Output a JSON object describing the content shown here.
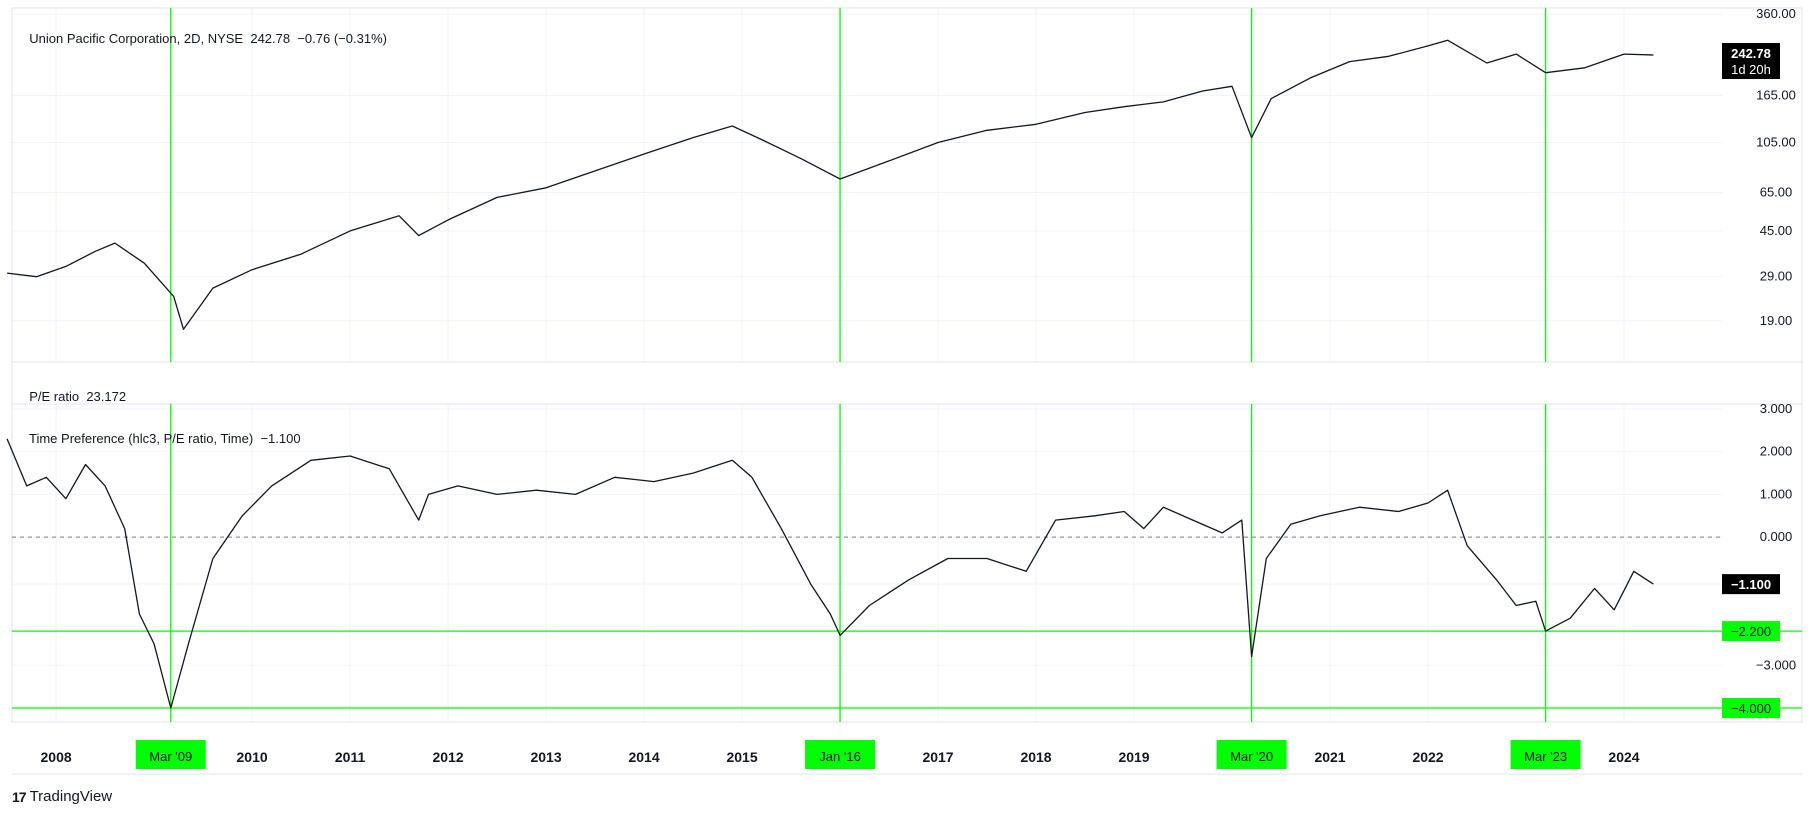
{
  "price_legend": {
    "symbol": "Union Pacific Corporation, 2D, NYSE",
    "last": "242.78",
    "change": "−0.76 (−0.31%)"
  },
  "pe_legend": {
    "label": "P/E ratio",
    "value": "23.172"
  },
  "tp_legend": {
    "label": "Time Preference (hlc3, P/E ratio, Time)",
    "value": "−1.100"
  },
  "price_badge": {
    "value": "242.78",
    "countdown": "1d 20h"
  },
  "tp_badge": {
    "value": "−1.100"
  },
  "brand": "TradingView",
  "colors": {
    "line": "#131722",
    "highlight": "#00ff00",
    "grid": "#f0f3fa",
    "badge_bg": "#000000",
    "zero_line": "#787b86"
  },
  "chart_data": [
    {
      "type": "line",
      "title": "Union Pacific Corporation, 2D, NYSE",
      "yscale": "log",
      "ylim": [
        15,
        360
      ],
      "yticks": [
        "360.00",
        "165.00",
        "105.00",
        "65.00",
        "45.00",
        "29.00",
        "19.00"
      ],
      "x": [
        2007.5,
        2007.8,
        2008.1,
        2008.4,
        2008.6,
        2008.9,
        2009.2,
        2009.3,
        2009.6,
        2010.0,
        2010.5,
        2011.0,
        2011.5,
        2011.7,
        2012.0,
        2012.5,
        2013.0,
        2013.5,
        2014.0,
        2014.5,
        2014.9,
        2015.2,
        2015.6,
        2016.0,
        2016.5,
        2017.0,
        2017.5,
        2018.0,
        2018.5,
        2018.9,
        2019.3,
        2019.7,
        2020.0,
        2020.2,
        2020.4,
        2020.8,
        2021.2,
        2021.6,
        2022.0,
        2022.2,
        2022.6,
        2022.9,
        2023.2,
        2023.6,
        2024.0,
        2024.3
      ],
      "y": [
        30,
        29,
        32,
        37,
        40,
        33,
        24,
        17.5,
        26,
        31,
        36,
        45,
        52,
        43,
        50,
        62,
        68,
        80,
        94,
        110,
        123,
        108,
        90,
        74,
        88,
        105,
        118,
        125,
        140,
        148,
        155,
        172,
        180,
        110,
        160,
        195,
        228,
        240,
        265,
        280,
        225,
        245,
        205,
        215,
        245,
        243
      ]
    },
    {
      "type": "line",
      "title": "Time Preference (hlc3, P/E ratio, Time)",
      "ylim": [
        -4.5,
        3.0
      ],
      "yticks": [
        "3.000",
        "2.000",
        "1.000",
        "0.000",
        "−1.100",
        "−2.200",
        "−3.000",
        "−4.000"
      ],
      "zero_line": 0.0,
      "x": [
        2007.5,
        2007.7,
        2007.9,
        2008.1,
        2008.3,
        2008.5,
        2008.7,
        2008.85,
        2009.0,
        2009.17,
        2009.35,
        2009.6,
        2009.9,
        2010.2,
        2010.6,
        2011.0,
        2011.4,
        2011.7,
        2011.8,
        2012.1,
        2012.5,
        2012.9,
        2013.3,
        2013.7,
        2014.1,
        2014.5,
        2014.9,
        2015.1,
        2015.4,
        2015.7,
        2015.9,
        2016.0,
        2016.3,
        2016.7,
        2017.1,
        2017.5,
        2017.9,
        2018.2,
        2018.6,
        2018.9,
        2019.1,
        2019.3,
        2019.6,
        2019.9,
        2020.1,
        2020.2,
        2020.35,
        2020.6,
        2020.9,
        2021.3,
        2021.7,
        2022.0,
        2022.2,
        2022.4,
        2022.7,
        2022.9,
        2023.1,
        2023.2,
        2023.45,
        2023.7,
        2023.9,
        2024.1,
        2024.3
      ],
      "y": [
        2.3,
        1.2,
        1.4,
        0.9,
        1.7,
        1.2,
        0.2,
        -1.8,
        -2.5,
        -4.0,
        -2.5,
        -0.5,
        0.5,
        1.2,
        1.8,
        1.9,
        1.6,
        0.4,
        1.0,
        1.2,
        1.0,
        1.1,
        1.0,
        1.4,
        1.3,
        1.5,
        1.8,
        1.4,
        0.2,
        -1.1,
        -1.8,
        -2.3,
        -1.6,
        -1.0,
        -0.5,
        -0.5,
        -0.8,
        0.4,
        0.5,
        0.6,
        0.2,
        0.7,
        0.4,
        0.1,
        0.4,
        -2.8,
        -0.5,
        0.3,
        0.5,
        0.7,
        0.6,
        0.8,
        1.1,
        -0.2,
        -1.0,
        -1.6,
        -1.5,
        -2.2,
        -1.9,
        -1.2,
        -1.7,
        -0.8,
        -1.1
      ]
    }
  ],
  "horizontal_levels": [
    {
      "label": "−2.200",
      "value": -2.2
    },
    {
      "label": "−4.000",
      "value": -4.0
    }
  ],
  "highlight_dates": [
    {
      "label": "Mar '09",
      "x": 2009.17
    },
    {
      "label": "Jan '16",
      "x": 2016.0
    },
    {
      "label": "Mar '20",
      "x": 2020.2
    },
    {
      "label": "Mar '23",
      "x": 2023.2
    }
  ],
  "x_axis_labels": [
    {
      "label": "2008",
      "x": 2008.0
    },
    {
      "label": "2010",
      "x": 2010.0
    },
    {
      "label": "2011",
      "x": 2011.0
    },
    {
      "label": "2012",
      "x": 2012.0
    },
    {
      "label": "2013",
      "x": 2013.0
    },
    {
      "label": "2014",
      "x": 2014.0
    },
    {
      "label": "2015",
      "x": 2015.0
    },
    {
      "label": "2017",
      "x": 2017.0
    },
    {
      "label": "2018",
      "x": 2018.0
    },
    {
      "label": "2019",
      "x": 2019.0
    },
    {
      "label": "2021",
      "x": 2021.0
    },
    {
      "label": "2022",
      "x": 2022.0
    },
    {
      "label": "2024",
      "x": 2024.0
    }
  ]
}
